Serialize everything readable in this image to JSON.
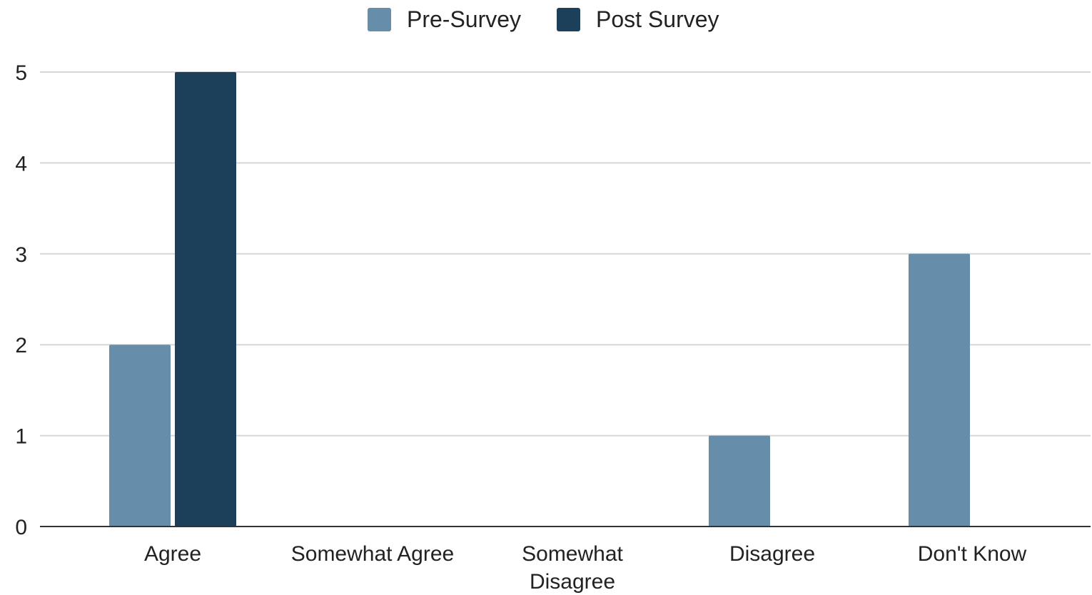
{
  "chart_data": {
    "type": "bar",
    "categories": [
      "Agree",
      "Somewhat Agree",
      "Somewhat Disagree",
      "Disagree",
      "Don't Know"
    ],
    "category_lines": [
      [
        "Agree"
      ],
      [
        "Somewhat Agree"
      ],
      [
        "Somewhat",
        "Disagree"
      ],
      [
        "Disagree"
      ],
      [
        "Don't Know"
      ]
    ],
    "series": [
      {
        "name": "Pre-Survey",
        "color": "#668daa",
        "values": [
          2,
          0,
          0,
          1,
          3
        ]
      },
      {
        "name": "Post Survey",
        "color": "#1d405a",
        "values": [
          5,
          0,
          0,
          0,
          0
        ]
      }
    ],
    "yticks": [
      "0",
      "1",
      "2",
      "3",
      "4",
      "5"
    ],
    "ylim": [
      0,
      5
    ],
    "grid": true,
    "legend_position": "top-center",
    "title": "",
    "xlabel": "",
    "ylabel": ""
  }
}
